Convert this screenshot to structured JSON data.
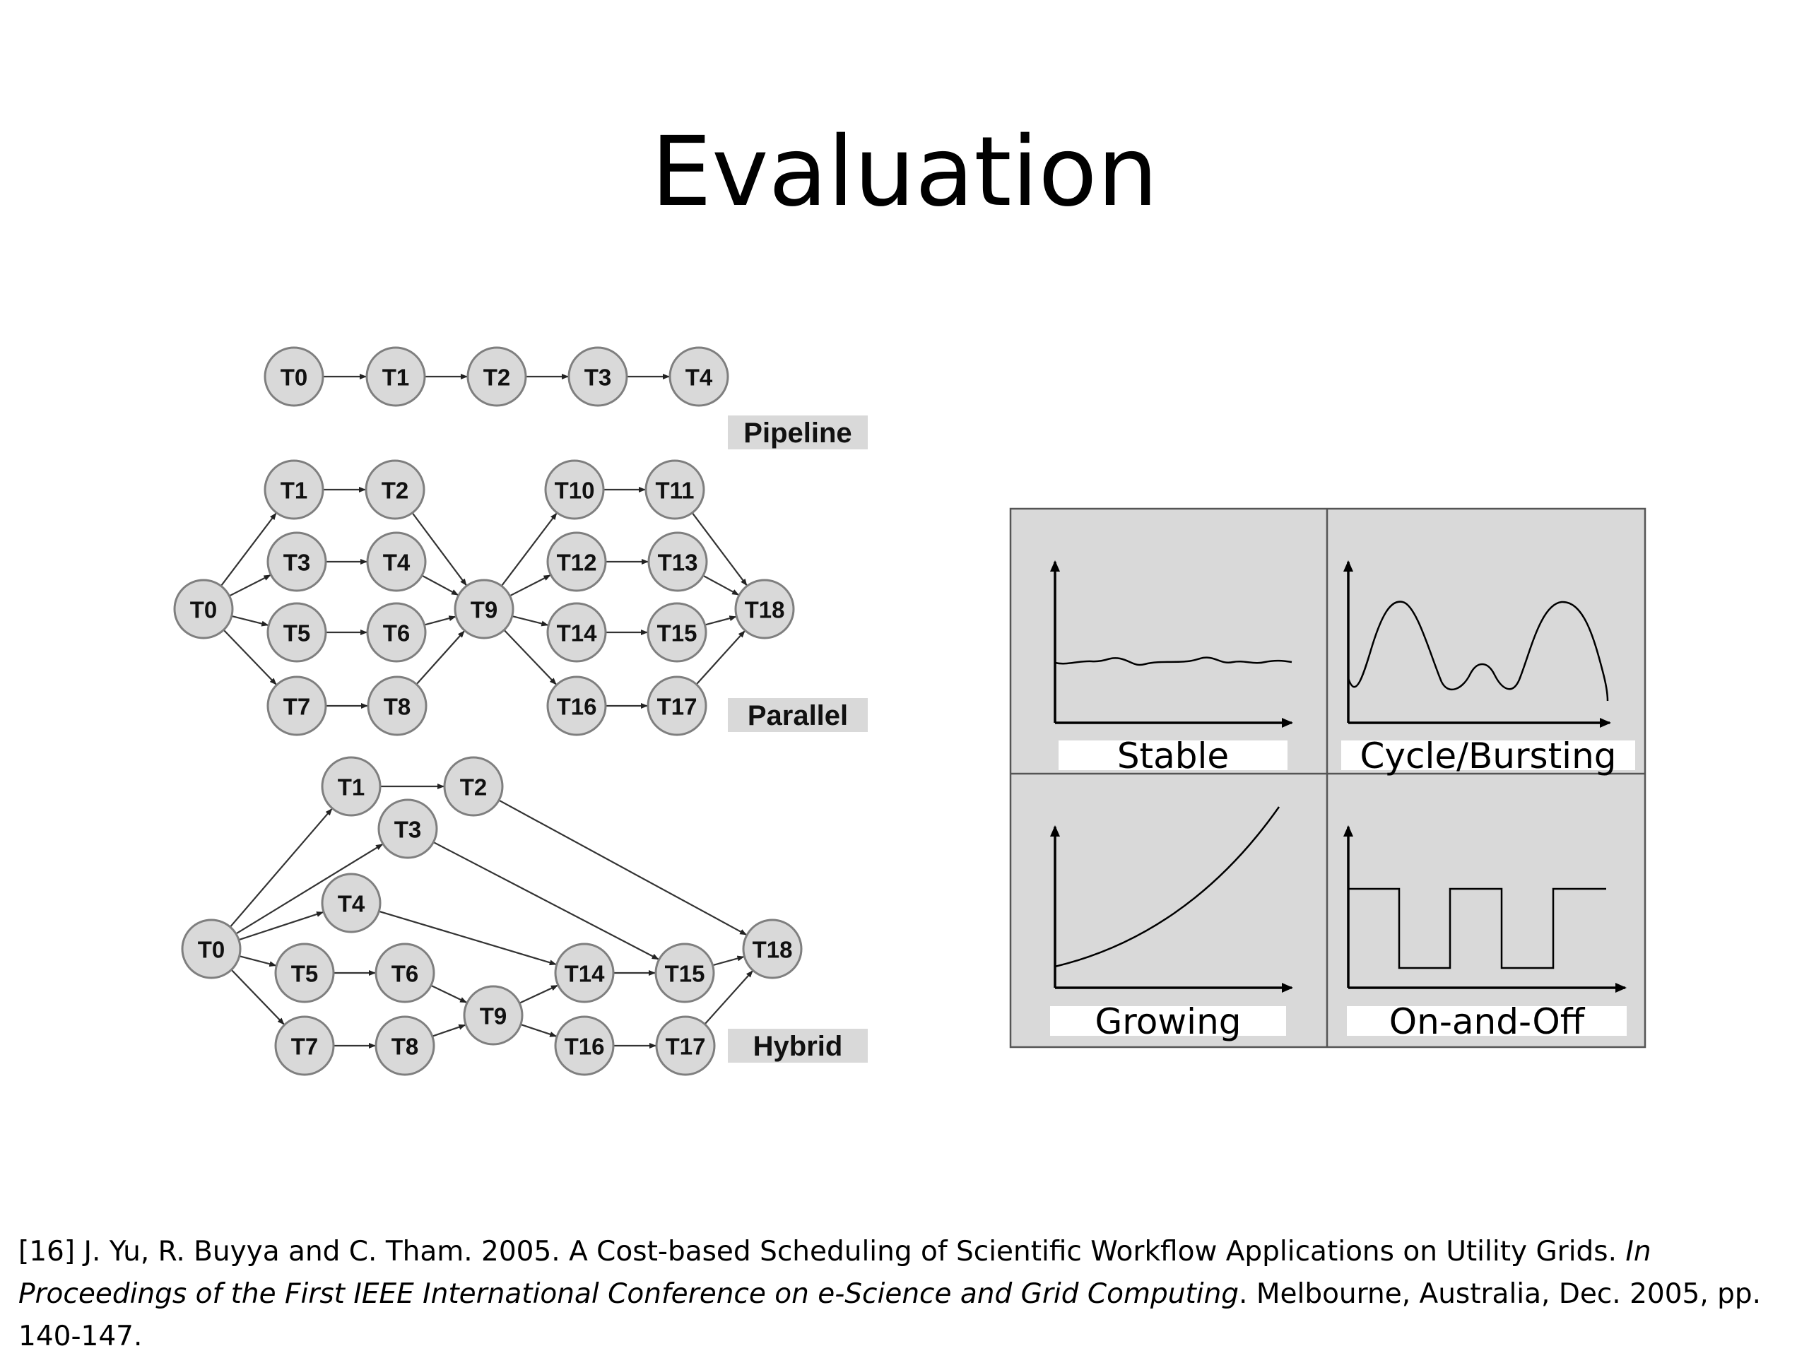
{
  "slide": {
    "title": "Evaluation"
  },
  "workflows": {
    "pipeline": {
      "label": "Pipeline",
      "nodes": [
        "T0",
        "T1",
        "T2",
        "T3",
        "T4"
      ],
      "edges": [
        [
          "T0",
          "T1"
        ],
        [
          "T1",
          "T2"
        ],
        [
          "T2",
          "T3"
        ],
        [
          "T3",
          "T4"
        ]
      ]
    },
    "parallel": {
      "label": "Parallel",
      "nodes": [
        "T0",
        "T1",
        "T2",
        "T3",
        "T4",
        "T5",
        "T6",
        "T7",
        "T8",
        "T9",
        "T10",
        "T11",
        "T12",
        "T13",
        "T14",
        "T15",
        "T16",
        "T17",
        "T18"
      ],
      "edges": [
        [
          "T0",
          "T1"
        ],
        [
          "T0",
          "T3"
        ],
        [
          "T0",
          "T5"
        ],
        [
          "T0",
          "T7"
        ],
        [
          "T1",
          "T2"
        ],
        [
          "T3",
          "T4"
        ],
        [
          "T5",
          "T6"
        ],
        [
          "T7",
          "T8"
        ],
        [
          "T2",
          "T9"
        ],
        [
          "T4",
          "T9"
        ],
        [
          "T6",
          "T9"
        ],
        [
          "T8",
          "T9"
        ],
        [
          "T9",
          "T10"
        ],
        [
          "T9",
          "T12"
        ],
        [
          "T9",
          "T14"
        ],
        [
          "T9",
          "T16"
        ],
        [
          "T10",
          "T11"
        ],
        [
          "T12",
          "T13"
        ],
        [
          "T14",
          "T15"
        ],
        [
          "T16",
          "T17"
        ],
        [
          "T11",
          "T18"
        ],
        [
          "T13",
          "T18"
        ],
        [
          "T15",
          "T18"
        ],
        [
          "T17",
          "T18"
        ]
      ]
    },
    "hybrid": {
      "label": "Hybrid",
      "nodes": [
        "T0",
        "T1",
        "T2",
        "T3",
        "T4",
        "T5",
        "T6",
        "T7",
        "T8",
        "T9",
        "T14",
        "T15",
        "T16",
        "T17",
        "T18"
      ],
      "edges": [
        [
          "T0",
          "T1"
        ],
        [
          "T0",
          "T3"
        ],
        [
          "T0",
          "T4"
        ],
        [
          "T0",
          "T5"
        ],
        [
          "T0",
          "T7"
        ],
        [
          "T1",
          "T2"
        ],
        [
          "T2",
          "T18"
        ],
        [
          "T3",
          "T15"
        ],
        [
          "T4",
          "T14"
        ],
        [
          "T5",
          "T6"
        ],
        [
          "T7",
          "T8"
        ],
        [
          "T6",
          "T9"
        ],
        [
          "T8",
          "T9"
        ],
        [
          "T9",
          "T14"
        ],
        [
          "T9",
          "T16"
        ],
        [
          "T14",
          "T15"
        ],
        [
          "T16",
          "T17"
        ],
        [
          "T15",
          "T18"
        ],
        [
          "T17",
          "T18"
        ]
      ]
    }
  },
  "workload_patterns": {
    "panels": [
      {
        "id": "stable",
        "label": "Stable"
      },
      {
        "id": "cycle",
        "label": "Cycle/Bursting"
      },
      {
        "id": "growing",
        "label": "Growing"
      },
      {
        "id": "onoff",
        "label": "On-and-Off"
      }
    ]
  },
  "citation": {
    "text_normal_1": "[16] J. Yu, R. Buyya and C. Tham. 2005. A Cost-based Scheduling of Scientific Workflow Applications on Utility Grids. ",
    "text_italic": "In Proceedings of the First IEEE International Conference on e-Science and Grid Computing",
    "text_normal_2": ". Melbourne, Australia, Dec. 2005, pp. 140-147."
  },
  "colors": {
    "node_fill": "#d9d9d9",
    "label_fill": "#d9d9d9",
    "panel_fill": "#d9d9d9"
  }
}
